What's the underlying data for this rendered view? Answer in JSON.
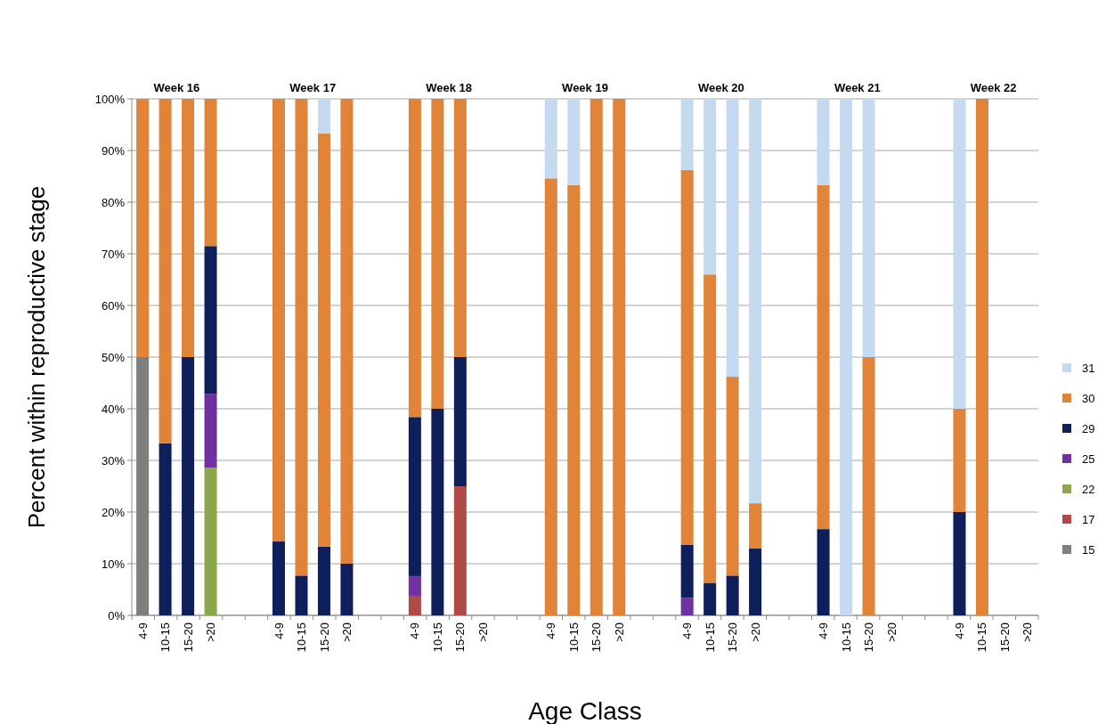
{
  "chart_data": {
    "type": "bar",
    "stacked": true,
    "ylabel": "Percent within reproductive stage",
    "xlabel": "Age Class",
    "annotations": [
      "Week 16",
      "Week 17",
      "Week 18",
      "Week 19",
      "Week 20",
      "Week 21",
      "Week 22"
    ],
    "categories": [
      "4-9",
      "10-15",
      "15-20",
      ">20",
      null,
      null,
      "4-9",
      "10-15",
      "15-20",
      ">20",
      null,
      null,
      "4-9",
      "10-15",
      "15-20",
      ">20",
      null,
      null,
      "4-9",
      "10-15",
      "15-20",
      ">20",
      null,
      null,
      "4-9",
      "10-15",
      "15-20",
      ">20",
      null,
      null,
      "4-9",
      "10-15",
      "15-20",
      ">20",
      null,
      null,
      "4-9",
      "10-15",
      "15-20",
      ">20"
    ],
    "series": [
      {
        "name": "15",
        "color": "#7f7f7f",
        "values": [
          50,
          null,
          null,
          null,
          null,
          null,
          null,
          null,
          null,
          null,
          null,
          null,
          null,
          null,
          null,
          null,
          null,
          null,
          null,
          null,
          null,
          null,
          null,
          null,
          null,
          null,
          null,
          null,
          null,
          null,
          null,
          null,
          null,
          null,
          null,
          null,
          null,
          null,
          null,
          null
        ]
      },
      {
        "name": "17",
        "color": "#b04a48",
        "values": [
          null,
          null,
          null,
          null,
          null,
          null,
          null,
          null,
          null,
          null,
          null,
          null,
          3.8,
          null,
          25,
          null,
          null,
          null,
          null,
          null,
          null,
          null,
          null,
          null,
          null,
          null,
          null,
          null,
          null,
          null,
          null,
          null,
          null,
          null,
          null,
          null,
          null,
          null,
          null,
          null
        ]
      },
      {
        "name": "22",
        "color": "#8aa84a",
        "values": [
          null,
          null,
          null,
          28.6,
          null,
          null,
          null,
          null,
          null,
          null,
          null,
          null,
          null,
          null,
          null,
          null,
          null,
          null,
          null,
          null,
          null,
          null,
          null,
          null,
          null,
          null,
          null,
          null,
          null,
          null,
          null,
          null,
          null,
          null,
          null,
          null,
          null,
          null,
          null,
          null
        ]
      },
      {
        "name": "25",
        "color": "#7030a0",
        "values": [
          null,
          null,
          null,
          14.3,
          null,
          null,
          null,
          null,
          null,
          null,
          null,
          null,
          3.8,
          null,
          null,
          null,
          null,
          null,
          null,
          null,
          null,
          null,
          null,
          null,
          3.4,
          null,
          null,
          null,
          null,
          null,
          null,
          null,
          null,
          null,
          null,
          null,
          null,
          null,
          null,
          null
        ]
      },
      {
        "name": "29",
        "color": "#0f1f5c",
        "values": [
          null,
          33.3,
          50,
          28.6,
          null,
          null,
          14.3,
          7.7,
          13.3,
          10,
          null,
          null,
          30.8,
          40,
          25,
          null,
          null,
          null,
          null,
          null,
          null,
          null,
          null,
          null,
          10.3,
          6.3,
          7.7,
          13,
          null,
          null,
          16.7,
          null,
          null,
          null,
          null,
          null,
          20,
          null,
          null,
          null
        ]
      },
      {
        "name": "30",
        "color": "#e0843a",
        "values": [
          50,
          66.7,
          50,
          28.5,
          null,
          null,
          85.7,
          92.3,
          80,
          90,
          null,
          null,
          61.6,
          60,
          50,
          null,
          null,
          null,
          84.6,
          83.3,
          100,
          100,
          null,
          null,
          72.5,
          59.7,
          38.5,
          8.7,
          null,
          null,
          66.6,
          null,
          50,
          null,
          null,
          null,
          20,
          100,
          null,
          null
        ]
      },
      {
        "name": "31",
        "color": "#c5d9f1",
        "values": [
          null,
          null,
          null,
          null,
          null,
          null,
          null,
          null,
          6.7,
          null,
          null,
          null,
          null,
          null,
          null,
          null,
          null,
          null,
          15.4,
          16.7,
          null,
          null,
          null,
          null,
          13.8,
          34,
          53.8,
          78.3,
          null,
          null,
          16.7,
          100,
          50,
          null,
          null,
          null,
          60,
          null,
          null,
          null
        ]
      }
    ],
    "ylim": [
      0,
      100
    ],
    "yticks": [
      {
        "value": 0,
        "label": "0%"
      },
      {
        "value": 10,
        "label": "10%"
      },
      {
        "value": 20,
        "label": "20%"
      },
      {
        "value": 30,
        "label": "30%"
      },
      {
        "value": 40,
        "label": "40%"
      },
      {
        "value": 50,
        "label": "50%"
      },
      {
        "value": 60,
        "label": "60%"
      },
      {
        "value": 70,
        "label": "70%"
      },
      {
        "value": 80,
        "label": "80%"
      },
      {
        "value": 90,
        "label": "90%"
      },
      {
        "value": 100,
        "label": "100%"
      }
    ],
    "grid": "y",
    "legend": "right"
  }
}
